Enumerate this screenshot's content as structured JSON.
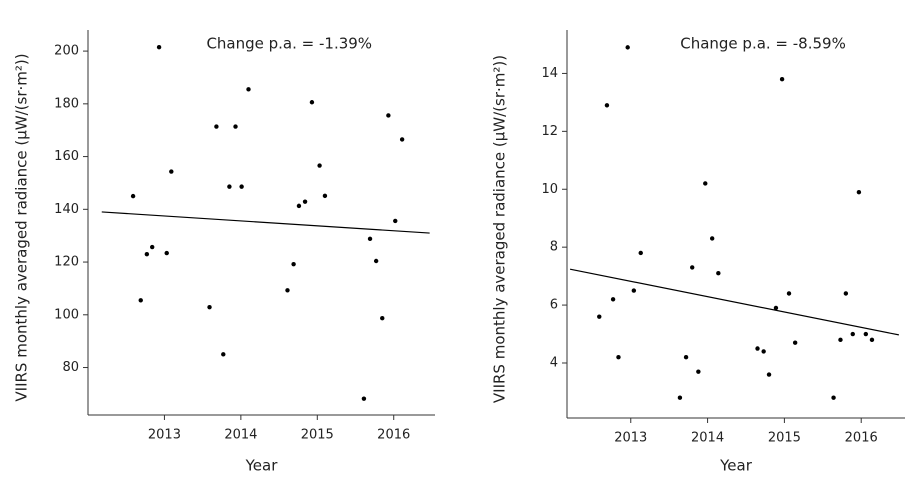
{
  "chart_data": [
    {
      "type": "scatter",
      "annotation": "Change p.a. = -1.39%",
      "xlabel": "Year",
      "ylabel": "VIIRS monthly averaged radiance (μW/(sr·m²))",
      "xlim": [
        2012.0,
        2016.54
      ],
      "xticks": [
        2013,
        2014,
        2015,
        2016
      ],
      "ylim": [
        62,
        208
      ],
      "yticks": [
        80,
        100,
        120,
        140,
        160,
        180,
        200
      ],
      "color": "#000000",
      "points": {
        "x": [
          2012.59,
          2012.69,
          2012.77,
          2012.84,
          2012.93,
          2013.03,
          2013.09,
          2013.59,
          2013.68,
          2013.77,
          2013.85,
          2013.93,
          2014.01,
          2014.1,
          2014.61,
          2014.69,
          2014.76,
          2014.84,
          2014.93,
          2015.03,
          2015.1,
          2015.61,
          2015.69,
          2015.77,
          2015.85,
          2015.93,
          2016.02,
          2016.11
        ],
        "values": [
          145,
          105.5,
          123,
          125.7,
          201.5,
          123.4,
          154.3,
          102.9,
          171.4,
          85,
          148.6,
          171.4,
          148.6,
          185.5,
          109.3,
          119.2,
          141.3,
          142.9,
          180.6,
          156.6,
          145.1,
          68.2,
          128.8,
          120.4,
          98.7,
          175.6,
          135.6,
          166.5
        ]
      },
      "trend": {
        "x": [
          2012.18,
          2016.47
        ],
        "values": [
          139.0,
          131.0
        ]
      }
    },
    {
      "type": "scatter",
      "annotation": "Change p.a. = -8.59%",
      "xlabel": "Year",
      "ylabel": "VIIRS monthly averaged radiance (μW/(sr·m²))",
      "xlim": [
        2012.17,
        2016.57
      ],
      "xticks": [
        2013,
        2014,
        2015,
        2016
      ],
      "ylim": [
        2.1,
        15.5
      ],
      "yticks": [
        4,
        6,
        8,
        10,
        12,
        14
      ],
      "color": "#000000",
      "points": {
        "x": [
          2012.59,
          2012.69,
          2012.77,
          2012.84,
          2012.96,
          2013.04,
          2013.13,
          2013.64,
          2013.72,
          2013.8,
          2013.88,
          2013.97,
          2014.06,
          2014.14,
          2014.65,
          2014.73,
          2014.8,
          2014.89,
          2014.97,
          2015.06,
          2015.14,
          2015.64,
          2015.73,
          2015.8,
          2015.89,
          2015.97,
          2016.06,
          2016.14
        ],
        "values": [
          5.6,
          12.9,
          6.2,
          4.2,
          14.9,
          6.5,
          7.8,
          2.8,
          4.2,
          7.3,
          3.7,
          10.2,
          8.3,
          7.1,
          4.5,
          4.4,
          3.6,
          5.9,
          13.8,
          6.4,
          4.7,
          2.8,
          4.8,
          6.4,
          5.0,
          9.9,
          5.0,
          4.8
        ]
      },
      "trend": {
        "x": [
          2012.21,
          2016.49
        ],
        "values": [
          7.24,
          4.97
        ]
      }
    }
  ]
}
